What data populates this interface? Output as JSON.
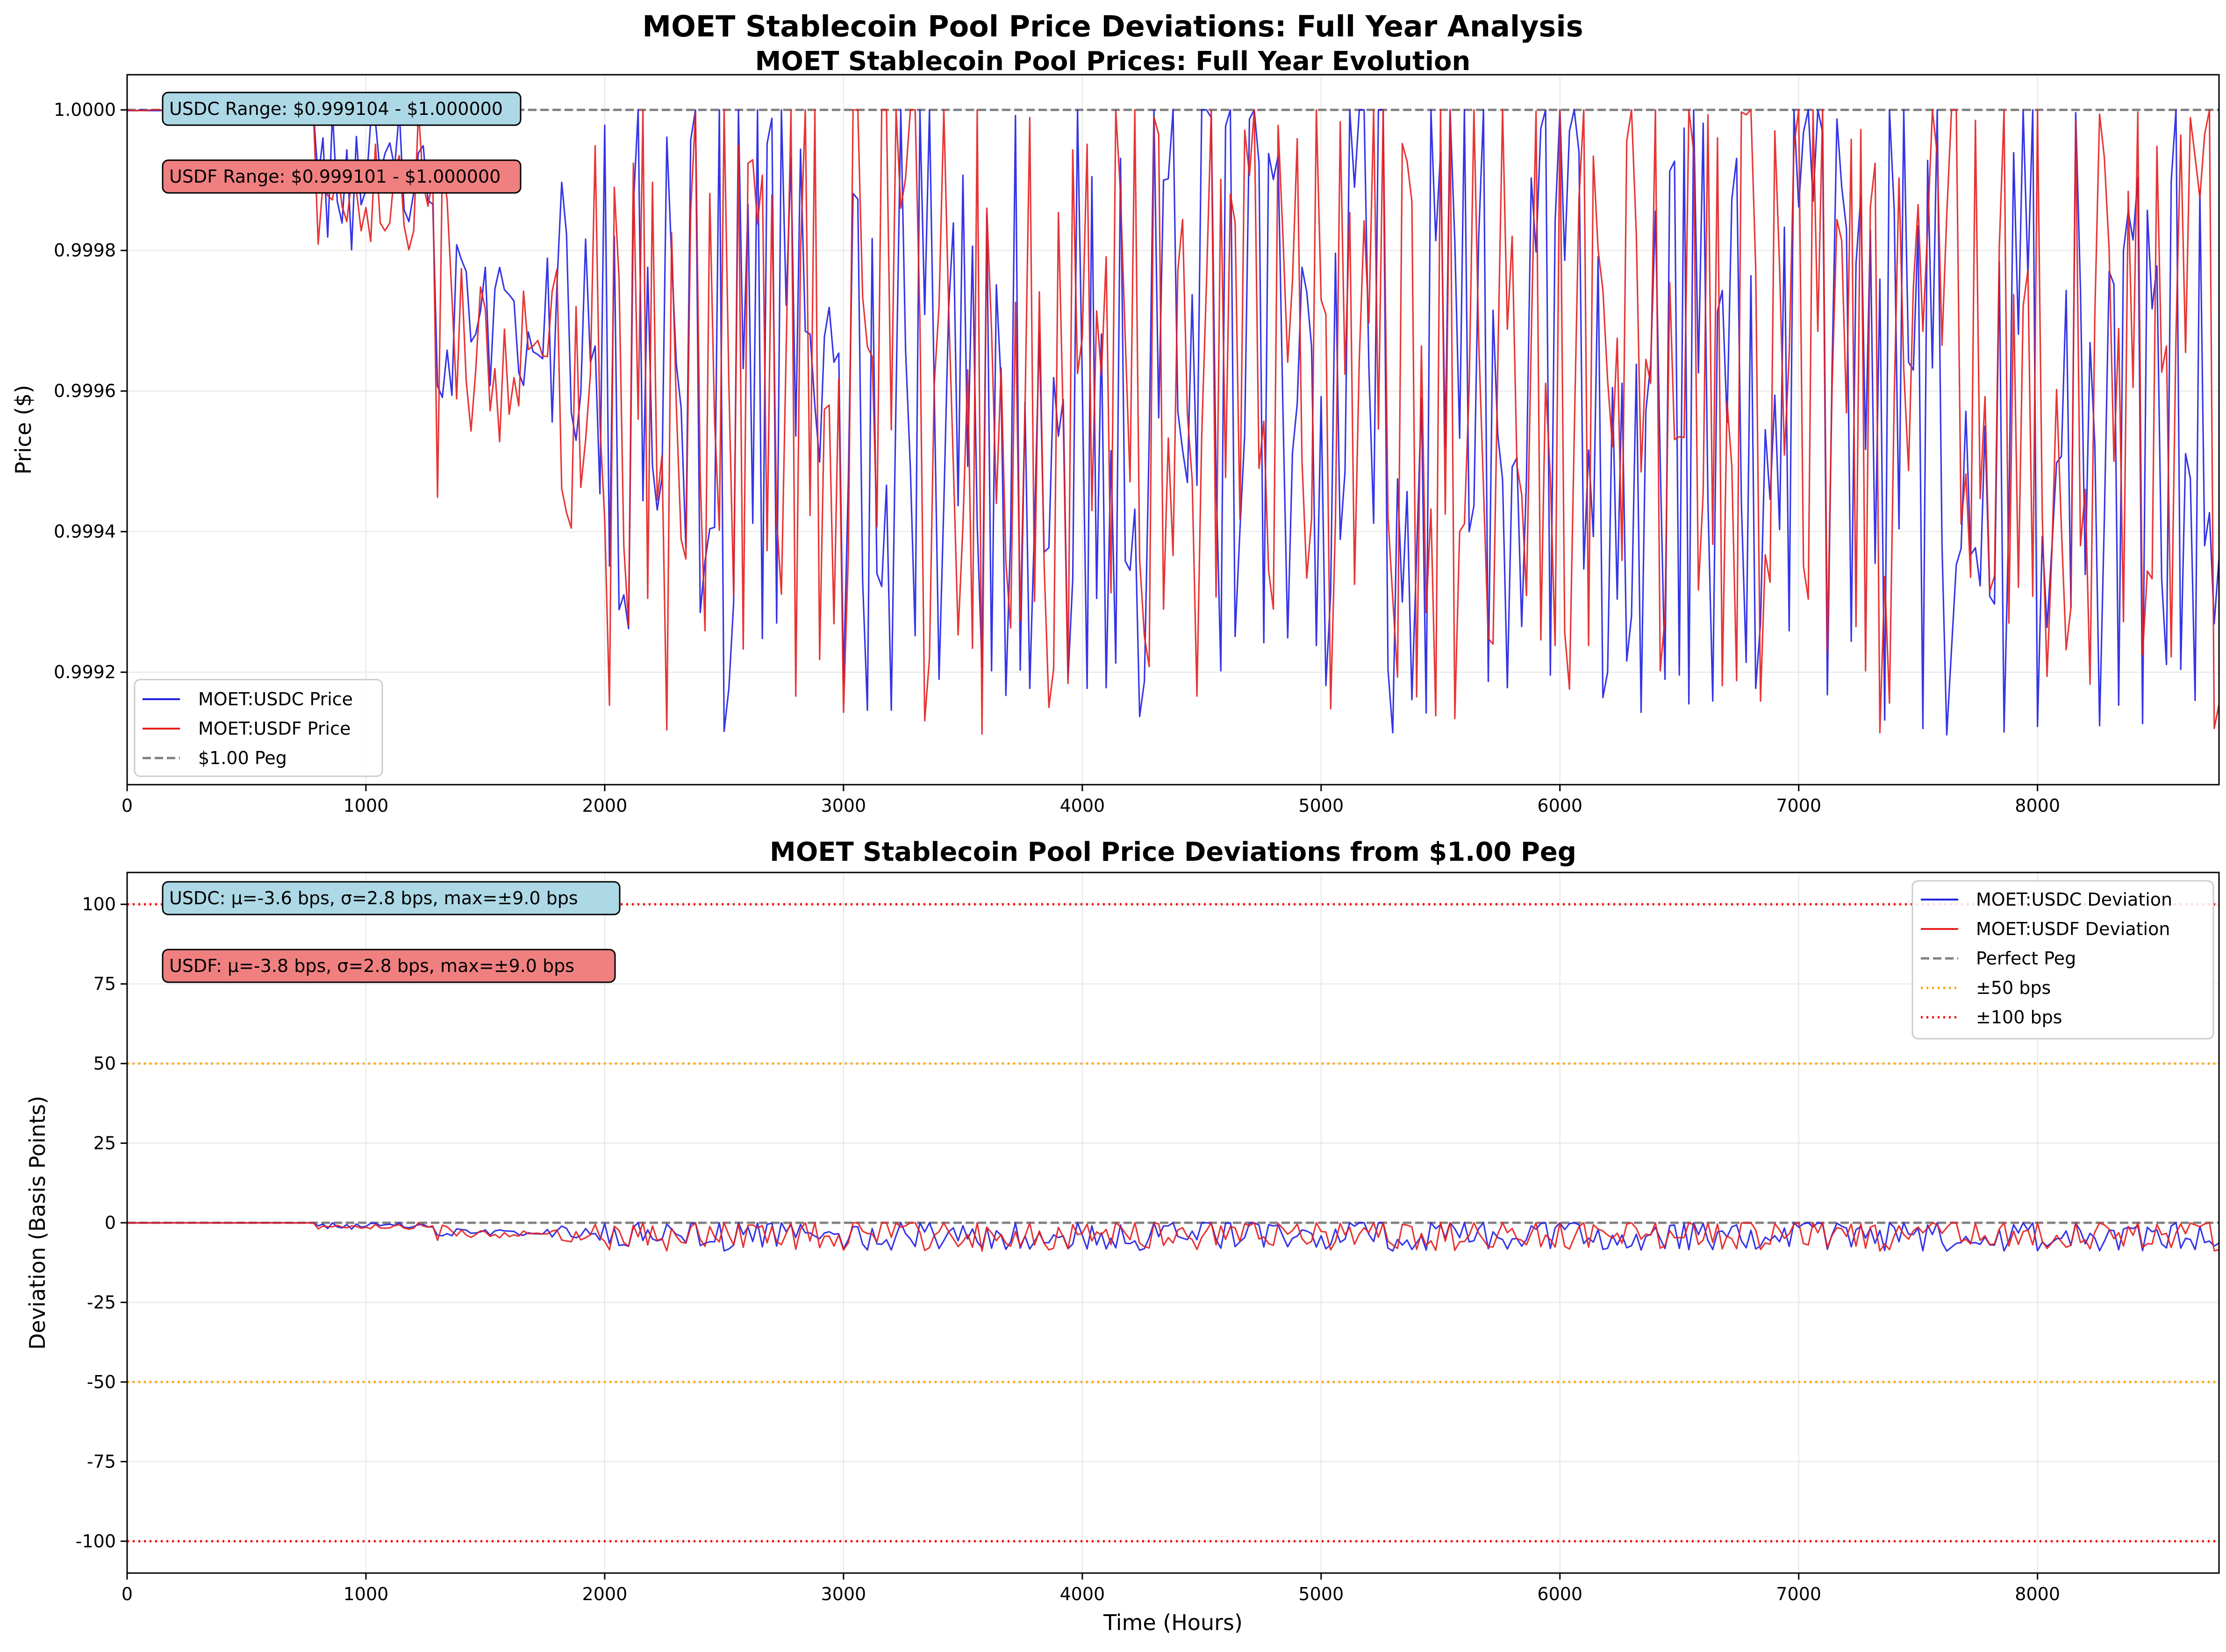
{
  "figure": {
    "suptitle": "MOET Stablecoin Pool Price Deviations: Full Year Analysis"
  },
  "colors": {
    "usdc": "#1f1fe6",
    "usdf": "#e61f1f",
    "peg": "#808080",
    "band50": "#ffa500",
    "band100": "#ff0000",
    "usdc_box": "#add8e6",
    "usdf_box": "#f08080"
  },
  "chart_data": [
    {
      "type": "line",
      "title": "MOET Stablecoin Pool Prices: Full Year Evolution",
      "xlabel": "",
      "ylabel": "Price ($)",
      "xlim": [
        0,
        8760
      ],
      "ylim": [
        0.99904,
        1.00005
      ],
      "xticks": [
        0,
        1000,
        2000,
        3000,
        4000,
        5000,
        6000,
        7000,
        8000
      ],
      "yticks": [
        0.9992,
        0.9994,
        0.9996,
        0.9998,
        1.0
      ],
      "ytick_labels": [
        "0.9992",
        "0.9994",
        "0.9996",
        "0.9998",
        "1.0000"
      ],
      "grid": true,
      "legend_position": "lower-left",
      "reference_lines": [
        {
          "name": "$1.00 Peg",
          "y": 1.0,
          "style": "dashed",
          "color": "#808080"
        }
      ],
      "annotations": [
        "USDC Range: $0.999104 - $1.000000",
        "USDF Range: $0.999101 - $1.000000"
      ],
      "series": [
        {
          "name": "MOET:USDC Price",
          "color": "#1f1fe6",
          "x": [],
          "y": []
        },
        {
          "name": "MOET:USDF Price",
          "color": "#e61f1f",
          "x": [],
          "y": []
        }
      ]
    },
    {
      "type": "line",
      "title": "MOET Stablecoin Pool Price Deviations from $1.00 Peg",
      "xlabel": "Time (Hours)",
      "ylabel": "Deviation (Basis Points)",
      "xlim": [
        0,
        8760
      ],
      "ylim": [
        -110,
        110
      ],
      "xticks": [
        0,
        1000,
        2000,
        3000,
        4000,
        5000,
        6000,
        7000,
        8000
      ],
      "yticks": [
        -100,
        -75,
        -50,
        -25,
        0,
        25,
        50,
        75,
        100
      ],
      "grid": true,
      "legend_position": "top-right",
      "reference_lines": [
        {
          "name": "Perfect Peg",
          "y": 0,
          "style": "dashed",
          "color": "#808080"
        },
        {
          "name": "±50 bps",
          "y": 50,
          "style": "dotted",
          "color": "#ffa500"
        },
        {
          "name": "±50 bps",
          "y": -50,
          "style": "dotted",
          "color": "#ffa500"
        },
        {
          "name": "±100 bps",
          "y": 100,
          "style": "dotted",
          "color": "#ff0000"
        },
        {
          "name": "±100 bps",
          "y": -100,
          "style": "dotted",
          "color": "#ff0000"
        }
      ],
      "annotations": [
        "USDC: μ=-3.6 bps, σ=2.8 bps, max=±9.0 bps",
        "USDF: μ=-3.8 bps, σ=2.8 bps, max=±9.0 bps"
      ],
      "series": [
        {
          "name": "MOET:USDC Deviation",
          "color": "#1f1fe6",
          "x": [],
          "y": []
        },
        {
          "name": "MOET:USDF Deviation",
          "color": "#e61f1f",
          "x": [],
          "y": []
        }
      ]
    }
  ],
  "legend_entries": {
    "top": [
      "MOET:USDC Price",
      "MOET:USDF Price",
      "$1.00 Peg"
    ],
    "bottom": [
      "MOET:USDC Deviation",
      "MOET:USDF Deviation",
      "Perfect Peg",
      "±50 bps",
      "±100 bps"
    ]
  }
}
